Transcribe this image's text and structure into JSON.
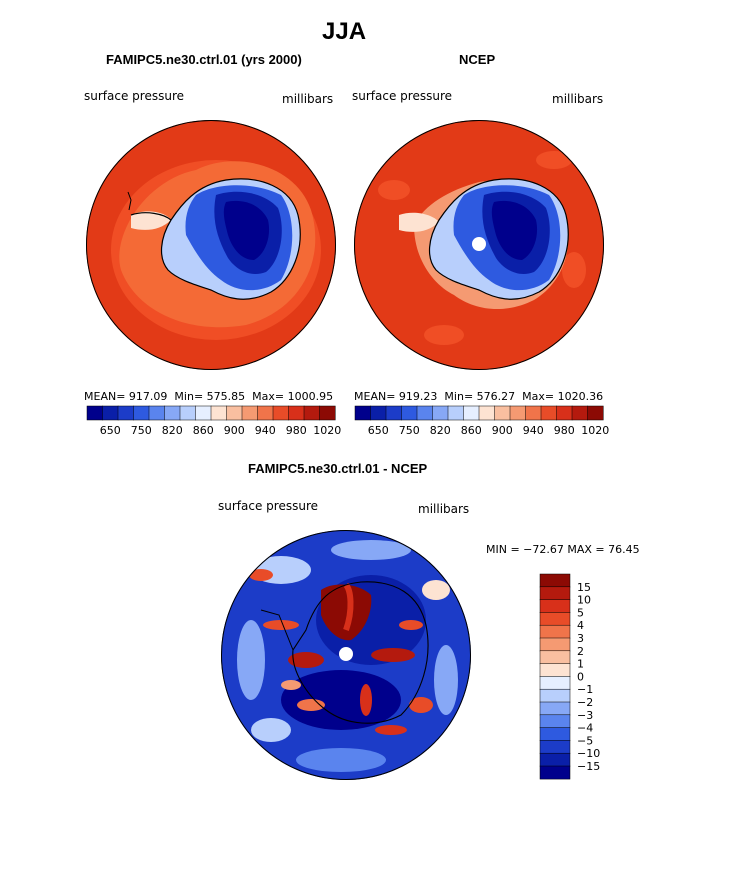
{
  "title": "JJA",
  "left_panel": {
    "title": "FAMIPC5.ne30.ctrl.01 (yrs 2000)",
    "variable": "surface pressure",
    "units": "millibars",
    "stats": {
      "mean_label": "MEAN=",
      "mean": "917.09",
      "min_label": "Min=",
      "min": "575.85",
      "max_label": "Max=",
      "max": "1000.95"
    }
  },
  "right_panel": {
    "title": "NCEP",
    "variable": "surface pressure",
    "units": "millibars",
    "stats": {
      "mean_label": "MEAN=",
      "mean": "919.23",
      "min_label": "Min=",
      "min": "576.27",
      "max_label": "Max=",
      "max": "1020.36"
    }
  },
  "abs_colorbar": {
    "ticks": [
      "650",
      "750",
      "820",
      "860",
      "900",
      "940",
      "980",
      "1020"
    ],
    "colors": [
      "#00008c",
      "#0a1fa8",
      "#1c3cc8",
      "#2e5ae0",
      "#5a84ee",
      "#87a8f6",
      "#b8cffc",
      "#e6efff",
      "#fde3d2",
      "#f9bfa0",
      "#f59a72",
      "#f0744a",
      "#e84c28",
      "#d8301a",
      "#b41a0e",
      "#8c0a04"
    ]
  },
  "diff_panel": {
    "title": "FAMIPC5.ne30.ctrl.01 - NCEP",
    "variable": "surface pressure",
    "units": "millibars",
    "stats": "MIN = −72.67 MAX =  76.45"
  },
  "diff_colorbar": {
    "labels": [
      "15",
      "10",
      "5",
      "4",
      "3",
      "2",
      "1",
      "0",
      "−1",
      "−2",
      "−3",
      "−4",
      "−5",
      "−10",
      "−15"
    ],
    "colors": [
      "#8c0a04",
      "#b41a0e",
      "#d8301a",
      "#e84c28",
      "#f0744a",
      "#f59a72",
      "#f9bfa0",
      "#fde3d2",
      "#e6efff",
      "#b8cffc",
      "#87a8f6",
      "#5a84ee",
      "#2e5ae0",
      "#1c3cc8",
      "#0a1fa8",
      "#00008c"
    ]
  }
}
